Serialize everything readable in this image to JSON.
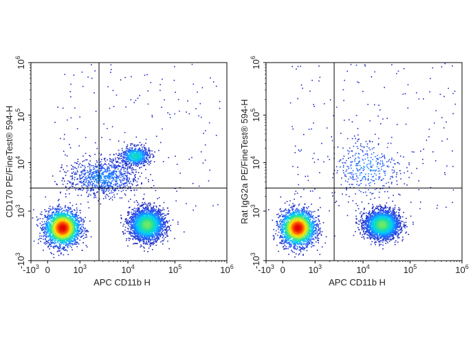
{
  "chart_data": [
    {
      "type": "scatter",
      "subtype": "flow-cytometry-density-plot",
      "xlabel": "APC CD11b H",
      "ylabel": "CD170 PE/FineTest® 594-H",
      "x_ticks": [
        {
          "base": "-10",
          "exp": "3",
          "value": -1000
        },
        {
          "base": "0",
          "exp": "",
          "value": 0
        },
        {
          "base": "10",
          "exp": "3",
          "value": 1000
        },
        {
          "base": "10",
          "exp": "4",
          "value": 10000
        },
        {
          "base": "10",
          "exp": "5",
          "value": 100000
        },
        {
          "base": "10",
          "exp": "6",
          "value": 1000000
        }
      ],
      "y_ticks": [
        {
          "base": "-10",
          "exp": "3",
          "value": -1000
        },
        {
          "base": "10",
          "exp": "3",
          "value": 1000
        },
        {
          "base": "10",
          "exp": "4",
          "value": 10000
        },
        {
          "base": "10",
          "exp": "5",
          "value": 100000
        },
        {
          "base": "10",
          "exp": "6",
          "value": 1000000
        }
      ],
      "xlim": [
        -1000,
        1000000
      ],
      "ylim": [
        -1000,
        1000000
      ],
      "x_scale": "biexponential",
      "y_scale": "biexponential",
      "quadrant_gate": {
        "x": 2500,
        "y": 3000
      },
      "populations": [
        {
          "x": 450,
          "y": 500,
          "x_spread": 0.55,
          "y_spread": 0.55,
          "count": 2600,
          "peak": "red"
        },
        {
          "x": 25000,
          "y": 600,
          "x_spread": 0.55,
          "y_spread": 0.5,
          "count": 2600,
          "peak": "green"
        },
        {
          "x": 14000,
          "y": 14000,
          "x_spread": 0.45,
          "y_spread": 0.3,
          "count": 700,
          "peak": "cyan"
        },
        {
          "x": 3000,
          "y": 5000,
          "x_spread": 1.1,
          "y_spread": 0.6,
          "count": 900,
          "peak": "blue"
        }
      ]
    },
    {
      "type": "scatter",
      "subtype": "flow-cytometry-density-plot",
      "xlabel": "APC CD11b H",
      "ylabel": "Rat IgG2a PE/FineTest® 594-H",
      "x_ticks": [
        {
          "base": "-10",
          "exp": "3",
          "value": -1000
        },
        {
          "base": "0",
          "exp": "",
          "value": 0
        },
        {
          "base": "10",
          "exp": "3",
          "value": 1000
        },
        {
          "base": "10",
          "exp": "4",
          "value": 10000
        },
        {
          "base": "10",
          "exp": "5",
          "value": 100000
        },
        {
          "base": "10",
          "exp": "6",
          "value": 1000000
        }
      ],
      "y_ticks": [
        {
          "base": "-10",
          "exp": "3",
          "value": -1000
        },
        {
          "base": "10",
          "exp": "3",
          "value": 1000
        },
        {
          "base": "10",
          "exp": "4",
          "value": 10000
        },
        {
          "base": "10",
          "exp": "5",
          "value": 100000
        },
        {
          "base": "10",
          "exp": "6",
          "value": 1000000
        }
      ],
      "xlim": [
        -1000,
        1000000
      ],
      "ylim": [
        -1000,
        1000000
      ],
      "x_scale": "biexponential",
      "y_scale": "biexponential",
      "quadrant_gate": {
        "x": 2500,
        "y": 3000
      },
      "populations": [
        {
          "x": 450,
          "y": 500,
          "x_spread": 0.55,
          "y_spread": 0.55,
          "count": 2600,
          "peak": "red"
        },
        {
          "x": 25000,
          "y": 600,
          "x_spread": 0.55,
          "y_spread": 0.45,
          "count": 2600,
          "peak": "green"
        },
        {
          "x": 12000,
          "y": 8000,
          "x_spread": 1.2,
          "y_spread": 1.0,
          "count": 350,
          "peak": "blue"
        }
      ]
    }
  ],
  "colors": {
    "density_ramp": [
      "#1a1ab0",
      "#2060ff",
      "#00c8ff",
      "#20e0a0",
      "#a0f040",
      "#ffe000",
      "#ff6000",
      "#e00000"
    ],
    "gate_line": "#000000",
    "frame": "#000000"
  }
}
